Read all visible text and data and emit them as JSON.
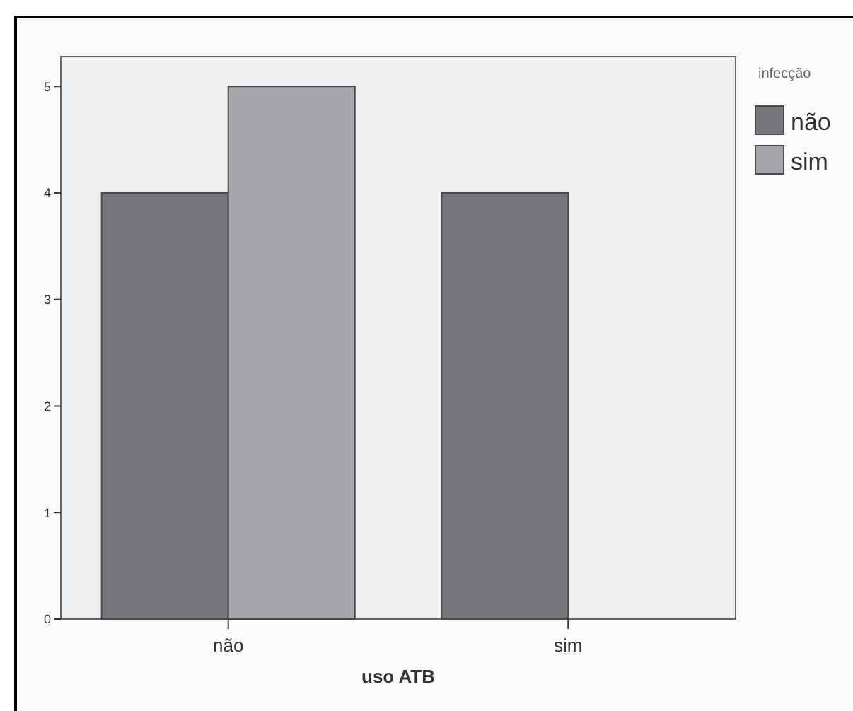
{
  "chart_data": {
    "type": "bar",
    "xlabel": "uso ATB",
    "legend_title": "infecção",
    "legend": "top right",
    "categories": [
      "não",
      "sim"
    ],
    "series": [
      {
        "name": "não",
        "color": "#76777b",
        "values": [
          4,
          4
        ]
      },
      {
        "name": "sim",
        "color": "#a3a5a8",
        "values": [
          5,
          null
        ]
      }
    ],
    "ylim": [
      0,
      5.28
    ],
    "yticks": [
      0,
      1,
      2,
      3,
      4,
      5
    ],
    "grid": false
  }
}
